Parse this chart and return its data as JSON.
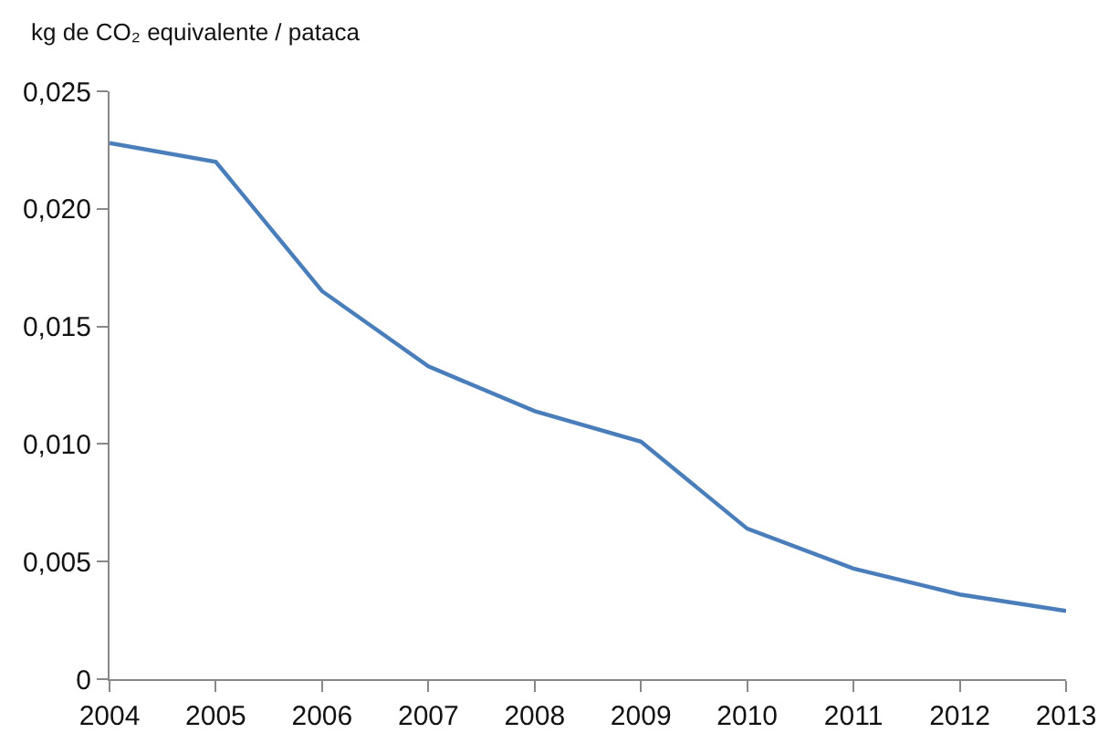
{
  "chart_data": {
    "type": "line",
    "ylabel": "kg de CO₂ equivalente / pataca",
    "x": [
      2004,
      2005,
      2006,
      2007,
      2008,
      2009,
      2010,
      2011,
      2012,
      2013
    ],
    "series": [
      {
        "color": "#4a7ebb",
        "values": [
          0.0228,
          0.022,
          0.0165,
          0.0133,
          0.0114,
          0.0101,
          0.0064,
          0.0047,
          0.0036,
          0.0029
        ]
      }
    ],
    "xlim": [
      2004,
      2013
    ],
    "xticks": [
      2004,
      2005,
      2006,
      2007,
      2008,
      2009,
      2010,
      2011,
      2012,
      2013
    ],
    "ylim": [
      0,
      0.025
    ],
    "yticks": [
      0,
      {
        "value": 0.005,
        "label": "0,005"
      },
      {
        "value": 0.01,
        "label": "0,010"
      },
      {
        "value": 0.015,
        "label": "0,015"
      },
      {
        "value": 0.02,
        "label": "0,020"
      },
      {
        "value": 0.025,
        "label": "0,025"
      }
    ],
    "legend": false,
    "marker": "none",
    "line_style": "solid"
  }
}
